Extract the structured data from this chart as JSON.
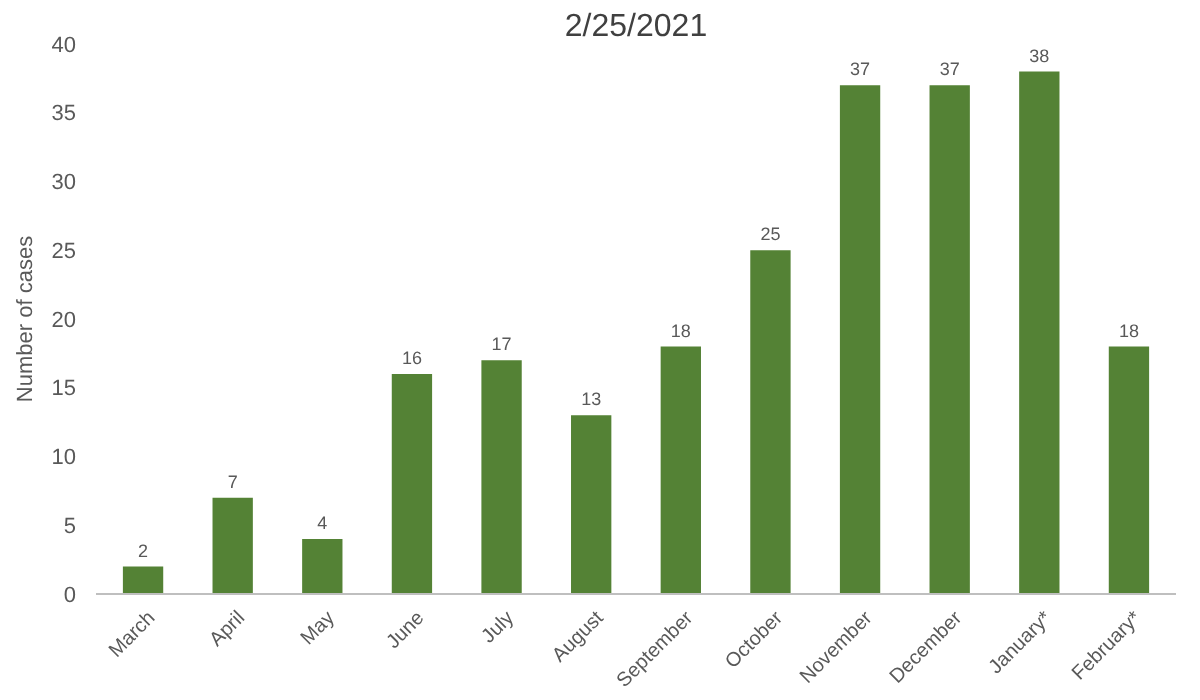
{
  "chart_data": {
    "type": "bar",
    "title": "2/25/2021",
    "ylabel": "Number of cases",
    "categories": [
      "March",
      "April",
      "May",
      "June",
      "July",
      "August",
      "September",
      "October",
      "November",
      "December",
      "January*",
      "February*"
    ],
    "values": [
      2,
      7,
      4,
      16,
      17,
      13,
      18,
      25,
      37,
      37,
      38,
      18
    ],
    "color": "#548235",
    "ylim": [
      0,
      40
    ],
    "yticks": [
      0,
      5,
      10,
      15,
      20,
      25,
      30,
      35,
      40
    ],
    "grid": false,
    "data_labels": true
  }
}
